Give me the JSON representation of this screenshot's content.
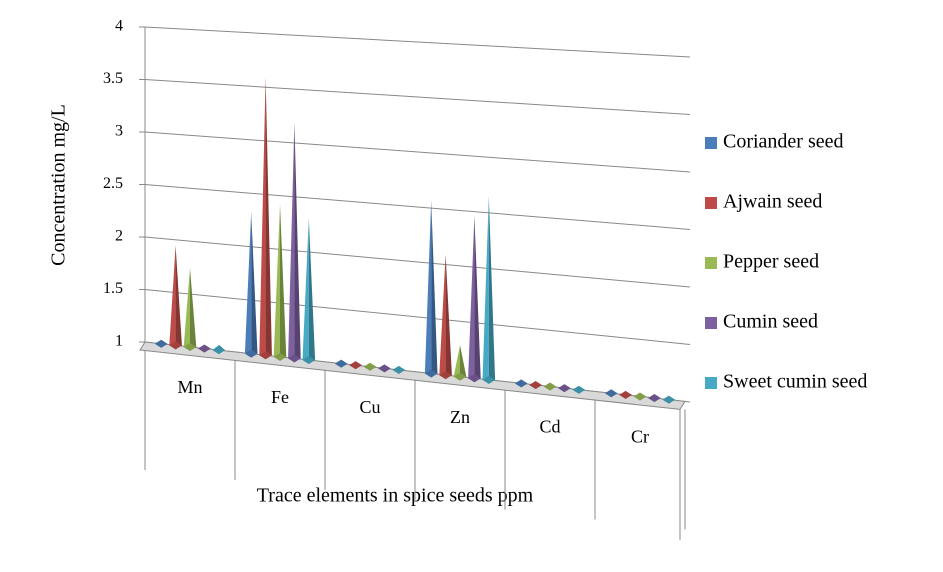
{
  "chart_data": {
    "type": "pyramid3d",
    "x_label": "Trace elements in spice seeds ppm",
    "y_label": "Concentration mg/L",
    "categories": [
      "Mn",
      "Fe",
      "Cu",
      "Zn",
      "Cd",
      "Cr"
    ],
    "series": [
      {
        "name": "Coriander seed",
        "color": "#4a7ebb",
        "values": [
          1,
          2.35,
          1,
          2.65,
          1,
          1
        ]
      },
      {
        "name": "Ajwain seed",
        "color": "#be4b48",
        "values": [
          1.95,
          3.65,
          1,
          2.15,
          1,
          1
        ]
      },
      {
        "name": "Pepper seed",
        "color": "#98b954",
        "values": [
          1.75,
          2.45,
          1,
          1.3,
          1,
          1
        ]
      },
      {
        "name": "Cumin seed",
        "color": "#7d60a0",
        "values": [
          1,
          3.25,
          1,
          2.55,
          1,
          1
        ]
      },
      {
        "name": "Sweet cumin seed",
        "color": "#46aac5",
        "values": [
          1.05,
          2.35,
          1,
          2.75,
          1,
          1
        ]
      }
    ],
    "ylim": [
      1,
      4
    ],
    "yticks": [
      1,
      1.5,
      2,
      2.5,
      3,
      3.5,
      4
    ],
    "grid": true,
    "legend": "right"
  }
}
